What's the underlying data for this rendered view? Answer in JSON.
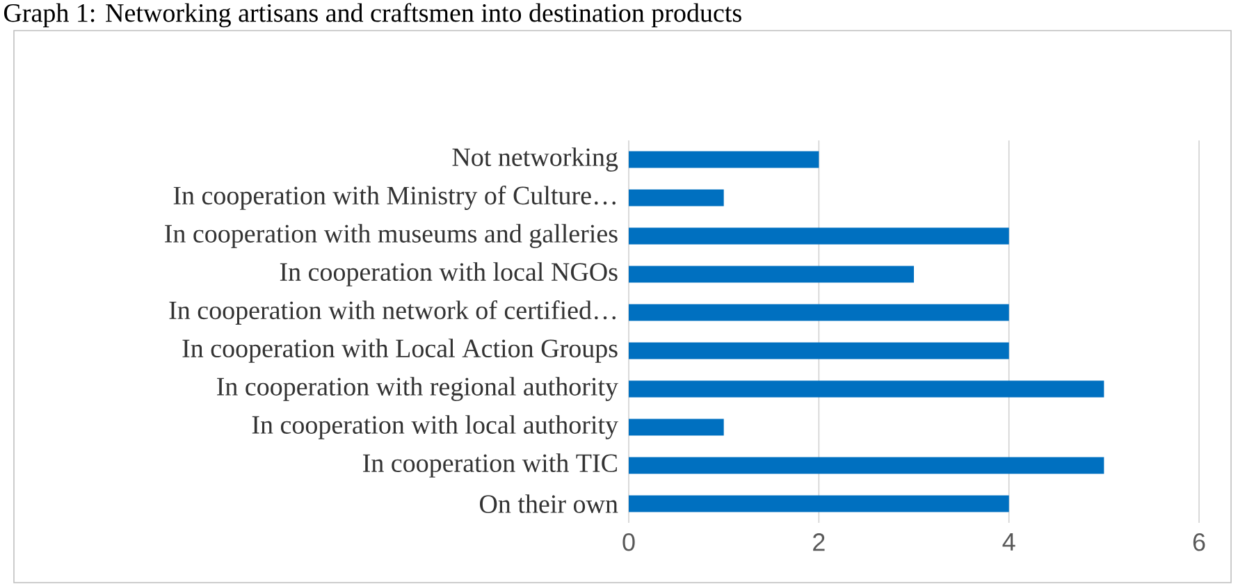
{
  "chart_data": {
    "type": "bar",
    "orientation": "horizontal",
    "title": "Graph 1: Networking artisans and craftsmen into destination products",
    "categories": [
      "Not networking",
      "In cooperation with Ministry of Culture…",
      "In cooperation with museums and galleries",
      "In cooperation with local NGOs",
      "In cooperation with network of certified…",
      "In cooperation with Local Action Groups",
      "In cooperation with regional authority",
      "In cooperation with local authority",
      "In cooperation with TIC",
      "On their own"
    ],
    "values": [
      2,
      1,
      4,
      3,
      4,
      4,
      5,
      1,
      5,
      4
    ],
    "color": "#0070c0",
    "xlim": [
      0,
      6
    ],
    "xticks": [
      0,
      2,
      4,
      6
    ],
    "grid": "x"
  }
}
